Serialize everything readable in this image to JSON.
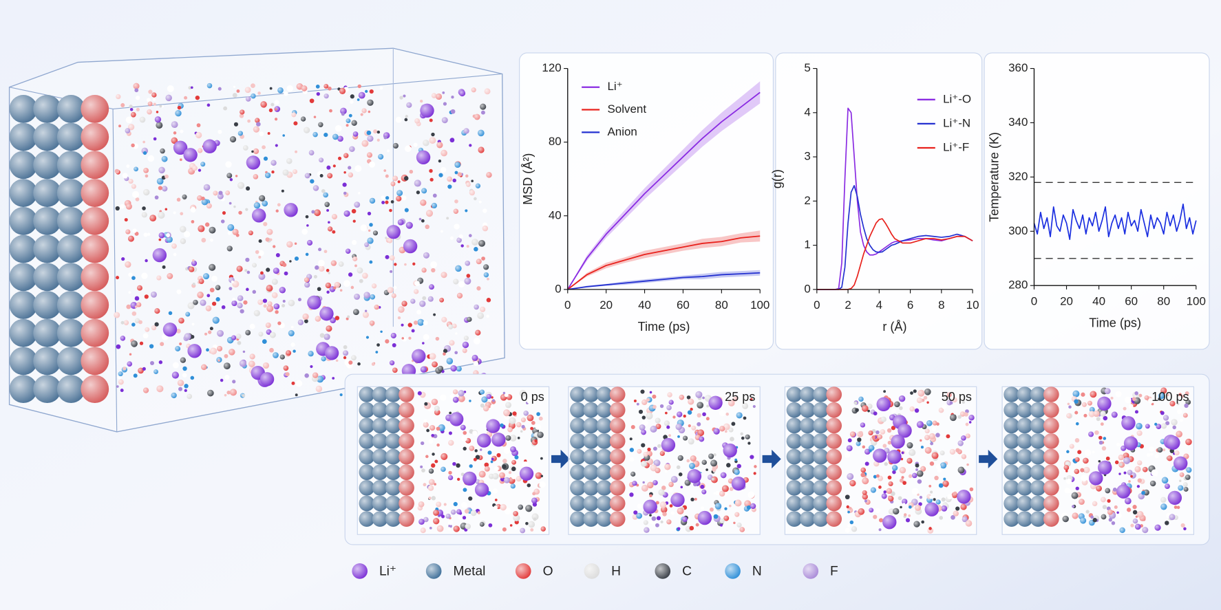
{
  "chart_data": [
    {
      "type": "line",
      "x_label": "Time (ps)",
      "y_label": "MSD (Å²)",
      "x": [
        0,
        10,
        20,
        30,
        40,
        50,
        60,
        70,
        80,
        90,
        100
      ],
      "xlim": [
        0,
        100
      ],
      "xticks": [
        0,
        20,
        40,
        60,
        80,
        100
      ],
      "ylim": [
        0,
        120
      ],
      "yticks": [
        0,
        40,
        80,
        120
      ],
      "series": [
        {
          "name": "Li⁺",
          "color": "#8a2be2",
          "values": [
            0,
            17,
            30,
            41,
            52,
            62,
            72,
            82,
            91,
            99,
            107
          ],
          "errors": [
            0,
            1.5,
            2,
            2.5,
            3,
            3.5,
            4,
            4.5,
            5,
            5.5,
            6
          ]
        },
        {
          "name": "Solvent",
          "color": "#e8211c",
          "values": [
            0,
            8,
            13,
            16,
            19,
            21,
            23,
            25,
            26,
            28,
            29
          ],
          "errors": [
            0,
            1,
            1.5,
            1.5,
            2,
            2,
            2,
            2.5,
            2.5,
            2.5,
            3
          ]
        },
        {
          "name": "Anion",
          "color": "#2330d0",
          "values": [
            0,
            1.5,
            2.5,
            3.5,
            4.5,
            5.5,
            6.5,
            7,
            8,
            8.5,
            9
          ],
          "errors": [
            0,
            0.5,
            0.5,
            1,
            1,
            1,
            1,
            1.5,
            1.5,
            1.5,
            1.5
          ]
        }
      ]
    },
    {
      "type": "line",
      "x_label": "r (Å)",
      "y_label": "g(r)",
      "x": [
        0,
        0.5,
        1,
        1.2,
        1.4,
        1.6,
        1.8,
        2.0,
        2.2,
        2.4,
        2.6,
        2.8,
        3.0,
        3.2,
        3.4,
        3.6,
        3.8,
        4.0,
        4.2,
        4.4,
        4.6,
        4.8,
        5.0,
        5.5,
        6,
        6.5,
        7,
        7.5,
        8,
        8.5,
        9,
        9.5,
        10
      ],
      "xlim": [
        0,
        10
      ],
      "xticks": [
        0,
        2,
        4,
        6,
        8,
        10
      ],
      "ylim": [
        0,
        5
      ],
      "yticks": [
        0,
        1,
        2,
        3,
        4,
        5
      ],
      "series": [
        {
          "name": "Li⁺-O",
          "color": "#8a2be2",
          "values": [
            0,
            0,
            0,
            0,
            0.02,
            0.6,
            2.5,
            4.1,
            4.0,
            3.0,
            2.0,
            1.3,
            1.0,
            0.85,
            0.78,
            0.78,
            0.8,
            0.85,
            0.9,
            0.95,
            1.0,
            1.05,
            1.08,
            1.1,
            1.12,
            1.15,
            1.15,
            1.12,
            1.1,
            1.15,
            1.2,
            1.2,
            1.1
          ]
        },
        {
          "name": "Li⁺-N",
          "color": "#2330d0",
          "values": [
            0,
            0,
            0,
            0,
            0,
            0.05,
            0.5,
            1.5,
            2.2,
            2.35,
            2.1,
            1.7,
            1.4,
            1.15,
            1.0,
            0.9,
            0.85,
            0.84,
            0.85,
            0.9,
            0.95,
            1.0,
            1.02,
            1.1,
            1.15,
            1.2,
            1.22,
            1.2,
            1.18,
            1.2,
            1.25,
            1.2,
            1.1
          ]
        },
        {
          "name": "Li⁺-F",
          "color": "#e8211c",
          "values": [
            0,
            0,
            0,
            0,
            0,
            0,
            0,
            0,
            0.02,
            0.1,
            0.3,
            0.55,
            0.8,
            1.0,
            1.2,
            1.35,
            1.5,
            1.58,
            1.6,
            1.5,
            1.38,
            1.25,
            1.15,
            1.05,
            1.05,
            1.1,
            1.15,
            1.15,
            1.12,
            1.15,
            1.2,
            1.2,
            1.1
          ]
        }
      ]
    },
    {
      "type": "line",
      "x_label": "Time (ps)",
      "y_label": "Temperature (K)",
      "x": [
        0,
        2,
        4,
        6,
        8,
        10,
        12,
        14,
        16,
        18,
        20,
        22,
        24,
        26,
        28,
        30,
        32,
        34,
        36,
        38,
        40,
        42,
        44,
        46,
        48,
        50,
        52,
        54,
        56,
        58,
        60,
        62,
        64,
        66,
        68,
        70,
        72,
        74,
        76,
        78,
        80,
        82,
        84,
        86,
        88,
        90,
        92,
        94,
        96,
        98,
        100
      ],
      "xlim": [
        0,
        100
      ],
      "xticks": [
        0,
        20,
        40,
        60,
        80,
        100
      ],
      "ylim": [
        280,
        360
      ],
      "yticks": [
        280,
        300,
        320,
        340,
        360
      ],
      "hlines": [
        318,
        290
      ],
      "series": [
        {
          "color": "#1a2ee0",
          "values": [
            303,
            299,
            307,
            301,
            305,
            298,
            309,
            302,
            300,
            306,
            303,
            297,
            308,
            304,
            301,
            306,
            299,
            305,
            302,
            307,
            300,
            304,
            309,
            298,
            303,
            306,
            301,
            305,
            299,
            307,
            302,
            304,
            300,
            308,
            303,
            298,
            306,
            301,
            305,
            303,
            299,
            307,
            302,
            306,
            300,
            304,
            310,
            301,
            305,
            299,
            304
          ]
        }
      ]
    }
  ],
  "snapshots": [
    "0 ps",
    "25 ps",
    "50 ps",
    "100 ps"
  ],
  "atom_legend": [
    {
      "label": "Li⁺",
      "color": "#7b2fd6"
    },
    {
      "label": "Metal",
      "color": "#3f6f99"
    },
    {
      "label": "O",
      "color": "#e23a3a"
    },
    {
      "label": "H",
      "color": "#dcdcdc"
    },
    {
      "label": "C",
      "color": "#3a3f47"
    },
    {
      "label": "N",
      "color": "#2f8fd8"
    },
    {
      "label": "F",
      "color": "#a98ad8"
    }
  ]
}
